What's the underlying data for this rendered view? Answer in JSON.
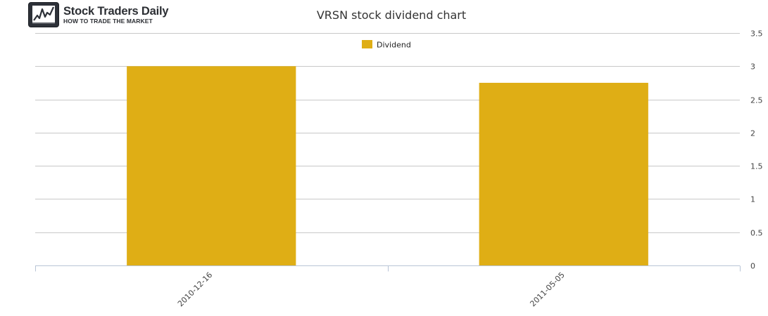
{
  "brand": {
    "name": "Stock Traders Daily",
    "tagline": "HOW TO TRADE THE MARKET"
  },
  "chart_data": {
    "type": "bar",
    "title": "VRSN stock dividend chart",
    "categories": [
      "2010-12-16",
      "2011-05-05"
    ],
    "series": [
      {
        "name": "Dividend",
        "values": [
          3.0,
          2.75
        ],
        "color": "#dfae15"
      }
    ],
    "ylim": [
      0,
      3.5
    ],
    "yticks": [
      "0",
      "0.5",
      "1",
      "1.5",
      "2",
      "2.5",
      "3",
      "3.5"
    ],
    "y_axis_side": "right",
    "legend_position": "top-center",
    "grid": true,
    "xlabel": "",
    "ylabel": ""
  }
}
